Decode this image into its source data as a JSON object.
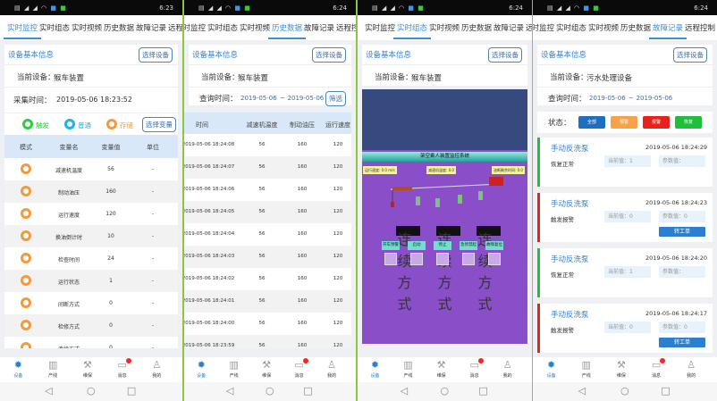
{
  "tabs": [
    "实时监控",
    "实时组态",
    "实时视频",
    "历史数据",
    "故障记录",
    "远程控制"
  ],
  "nav": [
    {
      "label": "设备",
      "icon": "gear-icon"
    },
    {
      "label": "产线",
      "icon": "chart-icon"
    },
    {
      "label": "维保",
      "icon": "wrench-icon"
    },
    {
      "label": "消息",
      "icon": "message-icon"
    },
    {
      "label": "我的",
      "icon": "user-icon"
    }
  ],
  "common": {
    "section_title": "设备基本信息",
    "select_device": "选择设备",
    "device_label": "当前设备：",
    "query_label": "查询时间："
  },
  "panels": {
    "monitor": {
      "clock": "6:23",
      "device": "猴车装置",
      "time_label": "采集时间：",
      "time": "2019-05-06 18:23:52",
      "legend": [
        {
          "label": "触发",
          "color": "#2ecc40"
        },
        {
          "label": "普通",
          "color": "#1ab6e8"
        },
        {
          "label": "存储",
          "color": "#f39a3c"
        }
      ],
      "select_var": "选择变量",
      "headers": [
        "模式",
        "变量名",
        "变量值",
        "单位"
      ],
      "rows": [
        {
          "name": "减速机温度",
          "value": "56",
          "unit": "-"
        },
        {
          "name": "制动油压",
          "value": "160",
          "unit": "-"
        },
        {
          "name": "运行速度",
          "value": "120",
          "unit": "-"
        },
        {
          "name": "换油倒计时",
          "value": "10",
          "unit": "-"
        },
        {
          "name": "检查时间",
          "value": "24",
          "unit": "-"
        },
        {
          "name": "运行状态",
          "value": "1",
          "unit": "-"
        },
        {
          "name": "间断方式",
          "value": "0",
          "unit": "-"
        },
        {
          "name": "检修方式",
          "value": "0",
          "unit": "-"
        },
        {
          "name": "连续方式",
          "value": "0",
          "unit": "-"
        }
      ]
    },
    "history": {
      "clock": "6:24",
      "device": "猴车装置",
      "range_start": "2019-05-06",
      "range_sep": "~",
      "range_end": "2019-05-06",
      "filter": "筛选",
      "headers": [
        "时间",
        "减速机温度",
        "制动油压",
        "运行速度"
      ],
      "rows": [
        [
          "2019-05-06 18:24:08",
          "56",
          "160",
          "120"
        ],
        [
          "2019-05-06 18:24:07",
          "56",
          "160",
          "120"
        ],
        [
          "2019-05-06 18:24:06",
          "56",
          "160",
          "120"
        ],
        [
          "2019-05-06 18:24:05",
          "56",
          "160",
          "120"
        ],
        [
          "2019-05-06 18:24:04",
          "56",
          "160",
          "120"
        ],
        [
          "2019-05-06 18:24:03",
          "56",
          "160",
          "120"
        ],
        [
          "2019-05-06 18:24:02",
          "56",
          "160",
          "120"
        ],
        [
          "2019-05-06 18:24:01",
          "56",
          "160",
          "120"
        ],
        [
          "2019-05-06 18:24:00",
          "56",
          "160",
          "120"
        ],
        [
          "2019-05-06 18:23:59",
          "56",
          "160",
          "120"
        ]
      ]
    },
    "scada": {
      "clock": "6:24",
      "device": "猴车装置",
      "title": "架空乘人装置监控系统",
      "readouts": [
        "运行速度: 0.0 m/s",
        "减速机温度: 0.0",
        "油断剩余时间: 0.0"
      ],
      "modes": [
        "连续方式",
        "连续方式",
        "连续方式"
      ],
      "controls": [
        "开车预警",
        "启动",
        "停止",
        "急停禁起",
        "故障复位"
      ]
    },
    "faults": {
      "clock": "6:24",
      "device": "污水处理设备",
      "range_start": "2019-05-06",
      "range_sep": "~",
      "range_end": "2019-05-06",
      "status_label": "状态：",
      "filters": [
        {
          "label": "全部",
          "color": "#1f6fc0"
        },
        {
          "label": "预警",
          "color": "#f7a24a"
        },
        {
          "label": "报警",
          "color": "#e8211c"
        },
        {
          "label": "恢复",
          "color": "#1fbf3c"
        }
      ],
      "records": [
        {
          "name": "手动反洗泵",
          "time": "2019-05-06 18:24:29",
          "state": "恢复正常",
          "current": "当前值：1",
          "param": "参数值：",
          "color": "#1fbf3c"
        },
        {
          "name": "手动反洗泵",
          "time": "2019-05-06 18:24:23",
          "state": "触发报警",
          "current": "当前值：0",
          "param": "参数值：0",
          "color": "#e8211c",
          "action": "转工单"
        },
        {
          "name": "手动反洗泵",
          "time": "2019-05-06 18:24:20",
          "state": "恢复正常",
          "current": "当前值：1",
          "param": "参数值：",
          "color": "#1fbf3c"
        },
        {
          "name": "手动反洗泵",
          "time": "2019-05-06 18:24:17",
          "state": "触发报警",
          "current": "当前值：0",
          "param": "参数值：0",
          "color": "#e8211c",
          "action": "转工单"
        }
      ]
    }
  }
}
